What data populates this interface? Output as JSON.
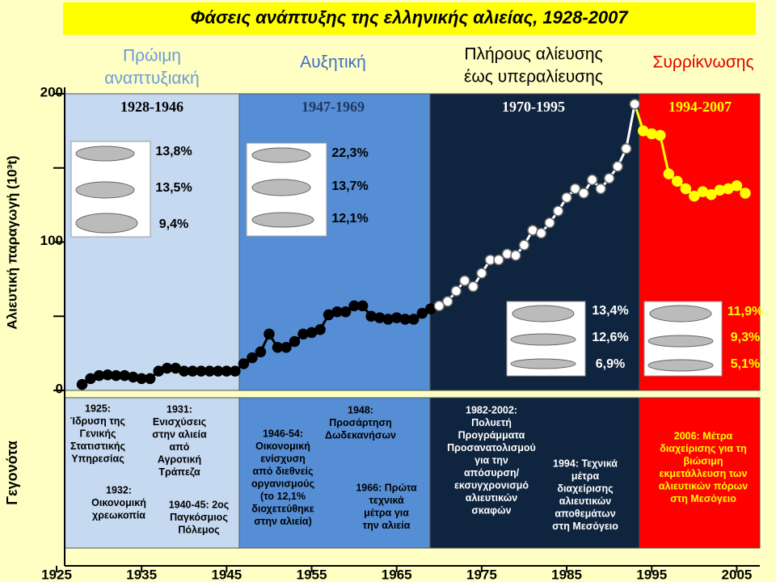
{
  "chart_data": {
    "type": "line",
    "title": "Φάσεις ανάπτυξης της ελληνικής αλιείας, 1928-2007",
    "ylabel": "Αλιευτική παραγωγή (10³t)",
    "events_label": "Γεγονότα",
    "xlim": [
      1925,
      2008
    ],
    "xticks": [
      1925,
      1935,
      1945,
      1955,
      1965,
      1975,
      1985,
      1995,
      2005
    ],
    "ylim": [
      0,
      200
    ],
    "yticks": [
      0,
      100,
      200
    ],
    "yminorticks": [
      50,
      150
    ],
    "series": [
      {
        "color": "#000000",
        "x": [
          1928,
          1929,
          1930,
          1931,
          1932,
          1933,
          1934,
          1935,
          1936,
          1937,
          1938,
          1939,
          1940,
          1941,
          1942,
          1943,
          1944,
          1945,
          1946,
          1947,
          1948,
          1949,
          1950,
          1951,
          1952,
          1953,
          1954,
          1955,
          1956,
          1957,
          1958,
          1959,
          1960,
          1961,
          1962,
          1963,
          1964,
          1965,
          1966,
          1967,
          1968,
          1969
        ],
        "values": [
          4,
          8,
          10,
          10.5,
          10,
          10,
          9,
          8,
          8,
          13,
          15,
          15,
          13,
          13,
          13,
          13,
          13,
          13,
          13,
          18,
          22,
          26,
          38,
          29,
          29,
          33,
          38,
          39,
          41,
          51,
          53,
          53,
          57,
          57,
          50,
          49,
          48,
          49,
          48,
          48,
          52,
          55
        ]
      },
      {
        "color": "#ffffff",
        "x": [
          1970,
          1971,
          1972,
          1973,
          1974,
          1975,
          1976,
          1977,
          1978,
          1979,
          1980,
          1981,
          1982,
          1983,
          1984,
          1985,
          1986,
          1987,
          1988,
          1989,
          1990,
          1991,
          1992,
          1993
        ],
        "values": [
          57,
          60,
          67,
          74,
          70,
          79,
          88,
          88,
          92,
          91,
          98,
          108,
          106,
          113,
          121,
          130,
          136,
          133,
          142,
          136,
          143,
          151,
          163,
          193
        ]
      },
      {
        "color": "#ffff00",
        "x": [
          1994,
          1995,
          1996,
          1997,
          1998,
          1999,
          2000,
          2001,
          2002,
          2003,
          2004,
          2005,
          2006
        ],
        "values": [
          175,
          173,
          172,
          146,
          141,
          136,
          131,
          134,
          132,
          135,
          136,
          138,
          133
        ]
      }
    ],
    "phases": [
      {
        "name": [
          "Πρώιμη",
          "αναπτυξιακή"
        ],
        "period": "1928-1946",
        "shares": [
          "13,8%",
          "13,5%",
          "9,4%"
        ]
      },
      {
        "name": [
          "Αυξητική"
        ],
        "period": "1947-1969",
        "shares": [
          "22,3%",
          "13,7%",
          "12,1%"
        ]
      },
      {
        "name": [
          "Πλήρους αλίευσης",
          "έως υπεραλίευσης"
        ],
        "period": "1970-1995",
        "shares": [
          "13,4%",
          "12,6%",
          "6,9%"
        ]
      },
      {
        "name": [
          "Συρρίκνωσης"
        ],
        "period": "1994-2007",
        "shares": [
          "11,9%",
          "9,3%",
          "5,1%"
        ]
      }
    ],
    "events": [
      [
        "1925:",
        "Ίδρυση της",
        "Γενικής",
        "Στατιστικής",
        "Υπηρεσίας"
      ],
      [
        "1931:",
        "Ενισχύσεις",
        "στην αλιεία",
        "από",
        "Αγροτική",
        "Τράπεζα"
      ],
      [
        "1932:",
        "Οικονομική",
        "χρεωκοπία"
      ],
      [
        "1940-45: 2ος",
        "Παγκόσμιος",
        "Πόλεμος"
      ],
      [
        "1946-54:",
        "Οικονομική",
        "ενίσχυση",
        "από διεθνείς",
        "οργανισμούς",
        "(το 12,1%",
        "διοχετεύθηκε",
        "στην αλιεία)"
      ],
      [
        "1948:",
        "Προσάρτηση",
        "Δωδεκανήσων"
      ],
      [
        "1966: Πρώτα",
        "τεχνικά",
        "μέτρα για",
        "την αλιεία"
      ],
      [
        "1982-2002:",
        "Πολυετή",
        "Προγράμματα",
        "Προσανατολισμού",
        "για την",
        "απόσυρση/",
        "εκσυγχρονισμό",
        "αλιευτικών",
        "σκαφών"
      ],
      [
        "1994: Τεχνικά",
        "μέτρα",
        "διαχείρισης",
        "αλιευτικών",
        "αποθεμάτων",
        "στη Μεσόγειο"
      ],
      [
        "2006: Μέτρα",
        "διαχείρισης για τη",
        "βιώσιμη",
        "εκμετάλλευση των",
        "αλιευτικών πόρων",
        "στη Μεσόγειο"
      ]
    ]
  }
}
